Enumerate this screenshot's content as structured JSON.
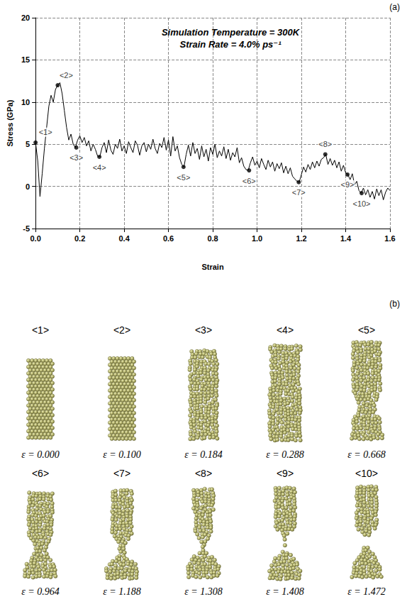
{
  "panel_labels": [
    "(a)",
    "(b)"
  ],
  "chart_data": {
    "type": "line",
    "title": "Simulation Temperature = 300K",
    "subtitle": "Strain Rate = 4.0% ps⁻¹",
    "x_label": "Strain",
    "y_label": "Stress (GPa)",
    "xlim": [
      0,
      1.6
    ],
    "ylim": [
      -5,
      20
    ],
    "xticks": [
      {
        "value": 0,
        "label": "0.0"
      },
      0.2,
      0.4,
      0.6,
      0.8,
      {
        "value": 1,
        "label": "1.0"
      },
      1.2,
      1.4,
      1.6
    ],
    "yticks": [
      -5,
      0,
      5,
      10,
      15,
      20
    ],
    "grid": true,
    "color": "#000000",
    "x": [
      0.0,
      0.01,
      0.02,
      0.03,
      0.04,
      0.05,
      0.06,
      0.07,
      0.08,
      0.09,
      0.1,
      0.11,
      0.12,
      0.13,
      0.14,
      0.15,
      0.16,
      0.17,
      0.18,
      0.19,
      0.2,
      0.21,
      0.22,
      0.23,
      0.24,
      0.25,
      0.26,
      0.27,
      0.28,
      0.29,
      0.3,
      0.31,
      0.32,
      0.33,
      0.34,
      0.35,
      0.36,
      0.37,
      0.38,
      0.39,
      0.4,
      0.41,
      0.42,
      0.43,
      0.44,
      0.45,
      0.46,
      0.47,
      0.48,
      0.49,
      0.5,
      0.51,
      0.52,
      0.53,
      0.54,
      0.55,
      0.56,
      0.57,
      0.58,
      0.59,
      0.6,
      0.61,
      0.62,
      0.63,
      0.64,
      0.65,
      0.66,
      0.67,
      0.68,
      0.69,
      0.7,
      0.71,
      0.72,
      0.73,
      0.74,
      0.75,
      0.76,
      0.77,
      0.78,
      0.79,
      0.8,
      0.81,
      0.82,
      0.83,
      0.84,
      0.85,
      0.86,
      0.87,
      0.88,
      0.89,
      0.9,
      0.91,
      0.92,
      0.93,
      0.94,
      0.95,
      0.96,
      0.97,
      0.98,
      0.99,
      1.0,
      1.01,
      1.02,
      1.03,
      1.04,
      1.05,
      1.06,
      1.07,
      1.08,
      1.09,
      1.1,
      1.11,
      1.12,
      1.13,
      1.14,
      1.15,
      1.16,
      1.17,
      1.18,
      1.19,
      1.2,
      1.21,
      1.22,
      1.23,
      1.24,
      1.25,
      1.26,
      1.27,
      1.28,
      1.29,
      1.3,
      1.31,
      1.32,
      1.33,
      1.34,
      1.35,
      1.36,
      1.37,
      1.38,
      1.39,
      1.4,
      1.41,
      1.42,
      1.43,
      1.44,
      1.45,
      1.46,
      1.47,
      1.48,
      1.49,
      1.5,
      1.51,
      1.52,
      1.53,
      1.54,
      1.55,
      1.56,
      1.57,
      1.58,
      1.59,
      1.6
    ],
    "values": [
      5.2,
      3.0,
      -1.2,
      1.5,
      4.5,
      7.0,
      9.5,
      10.8,
      10.0,
      11.5,
      12.0,
      12.3,
      11.0,
      9.0,
      7.0,
      5.5,
      6.2,
      5.0,
      4.6,
      5.5,
      6.0,
      5.2,
      5.8,
      4.8,
      5.4,
      4.2,
      5.0,
      4.4,
      3.6,
      3.5,
      4.6,
      5.2,
      4.0,
      5.5,
      4.3,
      3.8,
      5.0,
      4.5,
      5.6,
      4.2,
      4.8,
      3.9,
      5.3,
      4.6,
      4.0,
      5.4,
      4.9,
      3.7,
      4.8,
      5.2,
      4.1,
      5.0,
      4.4,
      5.6,
      4.5,
      3.9,
      5.1,
      4.6,
      5.8,
      4.3,
      5.5,
      3.6,
      5.9,
      4.2,
      4.8,
      3.4,
      2.6,
      2.3,
      3.8,
      4.9,
      3.6,
      5.2,
      3.9,
      4.5,
      3.2,
      4.8,
      3.5,
      4.4,
      3.0,
      4.6,
      3.8,
      5.0,
      3.4,
      4.2,
      3.6,
      4.7,
      3.3,
      4.4,
      3.1,
      4.0,
      3.5,
      4.6,
      2.8,
      3.4,
      2.4,
      2.0,
      1.9,
      2.8,
      3.5,
      2.5,
      3.0,
      2.2,
      3.3,
      2.6,
      2.0,
      3.1,
      2.3,
      2.9,
      1.8,
      2.7,
      2.1,
      2.8,
      1.6,
      2.4,
      1.5,
      2.2,
      1.2,
      0.9,
      0.6,
      0.5,
      1.4,
      2.3,
      1.7,
      2.6,
      2.0,
      2.9,
      2.2,
      3.0,
      2.4,
      3.2,
      3.4,
      3.8,
      2.6,
      3.3,
      2.5,
      3.1,
      2.2,
      2.9,
      1.8,
      2.5,
      1.6,
      1.4,
      0.8,
      1.5,
      0.2,
      0.6,
      -0.5,
      -0.8,
      -0.2,
      -1.0,
      -0.4,
      -1.3,
      -0.6,
      -1.5,
      -0.3,
      -1.1,
      -0.4,
      -1.6,
      -0.7,
      -0.2,
      -0.5
    ],
    "annotations": [
      {
        "label": "<1>",
        "x": 0.0,
        "y": 5.2
      },
      {
        "label": "<2>",
        "x": 0.1,
        "y": 12.0
      },
      {
        "label": "<3>",
        "x": 0.184,
        "y": 4.6
      },
      {
        "label": "<4>",
        "x": 0.288,
        "y": 3.5
      },
      {
        "label": "<5>",
        "x": 0.668,
        "y": 2.3
      },
      {
        "label": "<6>",
        "x": 0.964,
        "y": 1.9
      },
      {
        "label": "<7>",
        "x": 1.188,
        "y": 0.5
      },
      {
        "label": "<8>",
        "x": 1.308,
        "y": 3.8
      },
      {
        "label": "<9>",
        "x": 1.408,
        "y": 1.4
      },
      {
        "label": "<10>",
        "x": 1.472,
        "y": -0.8
      }
    ]
  },
  "snapshots": [
    {
      "label": "<1>",
      "strain": "ε = 0.000"
    },
    {
      "label": "<2>",
      "strain": "ε = 0.100"
    },
    {
      "label": "<3>",
      "strain": "ε = 0.184"
    },
    {
      "label": "<4>",
      "strain": "ε = 0.288"
    },
    {
      "label": "<5>",
      "strain": "ε = 0.668"
    },
    {
      "label": "<6>",
      "strain": "ε = 0.964"
    },
    {
      "label": "<7>",
      "strain": "ε = 1.188"
    },
    {
      "label": "<8>",
      "strain": "ε = 1.308"
    },
    {
      "label": "<9>",
      "strain": "ε = 1.408"
    },
    {
      "label": "<10>",
      "strain": "ε = 1.472"
    }
  ]
}
